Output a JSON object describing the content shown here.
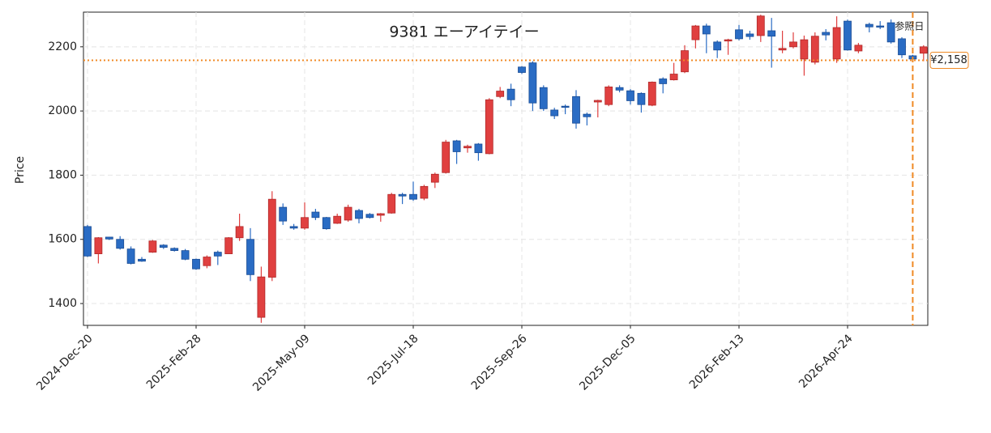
{
  "chart_data": {
    "type": "candlestick",
    "title": "9381  エーアイテイー",
    "ylabel": "Price",
    "categories": [
      "2024-Dec-20",
      null,
      null,
      null,
      null,
      null,
      null,
      null,
      null,
      null,
      "2025-Feb-28",
      null,
      null,
      null,
      null,
      null,
      null,
      null,
      null,
      null,
      "2025-May-09",
      null,
      null,
      null,
      null,
      null,
      null,
      null,
      null,
      null,
      "2025-Jul-18",
      null,
      null,
      null,
      null,
      null,
      null,
      null,
      null,
      null,
      "2025-Sep-26",
      null,
      null,
      null,
      null,
      null,
      null,
      null,
      null,
      null,
      "2025-Dec-05",
      null,
      null,
      null,
      null,
      null,
      null,
      null,
      null,
      null,
      "2026-Feb-13",
      null,
      null,
      null,
      null,
      null,
      null,
      null,
      null,
      null,
      "2026-Apr-24",
      null,
      null,
      null,
      null,
      null,
      null,
      null
    ],
    "open": [
      1640,
      1555,
      1607,
      1600,
      1570,
      1538,
      1560,
      1582,
      1572,
      1565,
      1538,
      1518,
      1560,
      1555,
      1605,
      1600,
      1357,
      1482,
      1700,
      1640,
      1635,
      1685,
      1668,
      1650,
      1660,
      1690,
      1678,
      1675,
      1682,
      1740,
      1740,
      1728,
      1778,
      1808,
      1907,
      1885,
      1897,
      1867,
      2045,
      2068,
      2137,
      2150,
      2073,
      2003,
      2015,
      2045,
      1990,
      2028,
      2020,
      2073,
      2063,
      2055,
      2018,
      2100,
      2097,
      2122,
      2222,
      2265,
      2215,
      2218,
      2253,
      2240,
      2235,
      2250,
      2190,
      2200,
      2162,
      2152,
      2245,
      2162,
      2280,
      2187,
      2270,
      2265,
      2275,
      2225,
      2172,
      2180
    ],
    "high": [
      1645,
      1607,
      1608,
      1610,
      1578,
      1545,
      1598,
      1585,
      1575,
      1570,
      1540,
      1550,
      1565,
      1607,
      1680,
      1635,
      1515,
      1750,
      1712,
      1648,
      1715,
      1695,
      1670,
      1680,
      1708,
      1695,
      1682,
      1682,
      1745,
      1745,
      1780,
      1770,
      1808,
      1910,
      1910,
      1895,
      1900,
      2040,
      2075,
      2085,
      2140,
      2155,
      2080,
      2010,
      2020,
      2065,
      1995,
      2035,
      2080,
      2080,
      2068,
      2058,
      2092,
      2105,
      2150,
      2205,
      2268,
      2272,
      2220,
      2225,
      2268,
      2250,
      2300,
      2290,
      2250,
      2245,
      2235,
      2245,
      2255,
      2295,
      2285,
      2212,
      2275,
      2280,
      2285,
      2230,
      2175,
      2205
    ],
    "low": [
      1545,
      1525,
      1598,
      1568,
      1522,
      1530,
      1558,
      1570,
      1562,
      1535,
      1505,
      1510,
      1520,
      1555,
      1595,
      1470,
      1340,
      1470,
      1645,
      1630,
      1630,
      1660,
      1630,
      1648,
      1655,
      1650,
      1665,
      1655,
      1680,
      1710,
      1720,
      1722,
      1760,
      1805,
      1835,
      1870,
      1845,
      1865,
      2040,
      2015,
      2115,
      2000,
      2000,
      1975,
      1990,
      1945,
      1955,
      1980,
      2015,
      2058,
      2020,
      1995,
      2015,
      2055,
      2095,
      2118,
      2195,
      2180,
      2165,
      2175,
      2220,
      2222,
      2215,
      2135,
      2180,
      2195,
      2110,
      2145,
      2220,
      2150,
      2188,
      2180,
      2245,
      2255,
      2210,
      2165,
      2155,
      2155
    ],
    "close": [
      1548,
      1605,
      1601,
      1572,
      1525,
      1532,
      1595,
      1575,
      1565,
      1538,
      1508,
      1545,
      1548,
      1605,
      1640,
      1490,
      1483,
      1725,
      1657,
      1635,
      1668,
      1668,
      1633,
      1672,
      1700,
      1665,
      1668,
      1680,
      1740,
      1735,
      1725,
      1765,
      1803,
      1903,
      1873,
      1890,
      1870,
      2035,
      2062,
      2035,
      2120,
      2025,
      2007,
      1985,
      2012,
      1962,
      1982,
      2033,
      2075,
      2065,
      2032,
      2020,
      2090,
      2085,
      2115,
      2188,
      2265,
      2240,
      2190,
      2222,
      2225,
      2232,
      2296,
      2233,
      2195,
      2215,
      2222,
      2233,
      2237,
      2260,
      2190,
      2205,
      2262,
      2262,
      2215,
      2175,
      2162,
      2200
    ],
    "up_color": "#e04040",
    "down_color": "#2a6cc4",
    "ylim": [
      1332,
      2308
    ],
    "yticks": [
      1400,
      1600,
      1800,
      2000,
      2200
    ],
    "grid": true,
    "hline": {
      "value": 2158,
      "label": "¥2,158",
      "color": "#f08a24"
    },
    "vline": {
      "index": 76,
      "label": "参照日",
      "color": "#f08a24"
    }
  }
}
